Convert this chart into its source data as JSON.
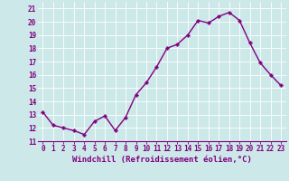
{
  "x": [
    0,
    1,
    2,
    3,
    4,
    5,
    6,
    7,
    8,
    9,
    10,
    11,
    12,
    13,
    14,
    15,
    16,
    17,
    18,
    19,
    20,
    21,
    22,
    23
  ],
  "y": [
    13.2,
    12.2,
    12.0,
    11.8,
    11.5,
    12.5,
    12.9,
    11.8,
    12.8,
    14.5,
    15.4,
    16.6,
    18.0,
    18.3,
    19.0,
    20.1,
    19.9,
    20.4,
    20.7,
    20.1,
    18.4,
    16.9,
    16.0,
    15.2
  ],
  "line_color": "#800080",
  "marker": "P",
  "marker_size": 2.5,
  "linewidth": 1.0,
  "xlabel": "Windchill (Refroidissement éolien,°C)",
  "xlabel_fontsize": 6.5,
  "ylabel_ticks": [
    11,
    12,
    13,
    14,
    15,
    16,
    17,
    18,
    19,
    20,
    21
  ],
  "xtick_labels": [
    "0",
    "1",
    "2",
    "3",
    "4",
    "5",
    "6",
    "7",
    "8",
    "9",
    "10",
    "11",
    "12",
    "13",
    "14",
    "15",
    "16",
    "17",
    "18",
    "19",
    "20",
    "21",
    "22",
    "23"
  ],
  "ylim": [
    11,
    21.5
  ],
  "xlim": [
    -0.5,
    23.5
  ],
  "bg_color": "#cce8e8",
  "grid_color": "#aacccc",
  "tick_fontsize": 5.5,
  "tick_color": "#800080",
  "label_color": "#800080"
}
